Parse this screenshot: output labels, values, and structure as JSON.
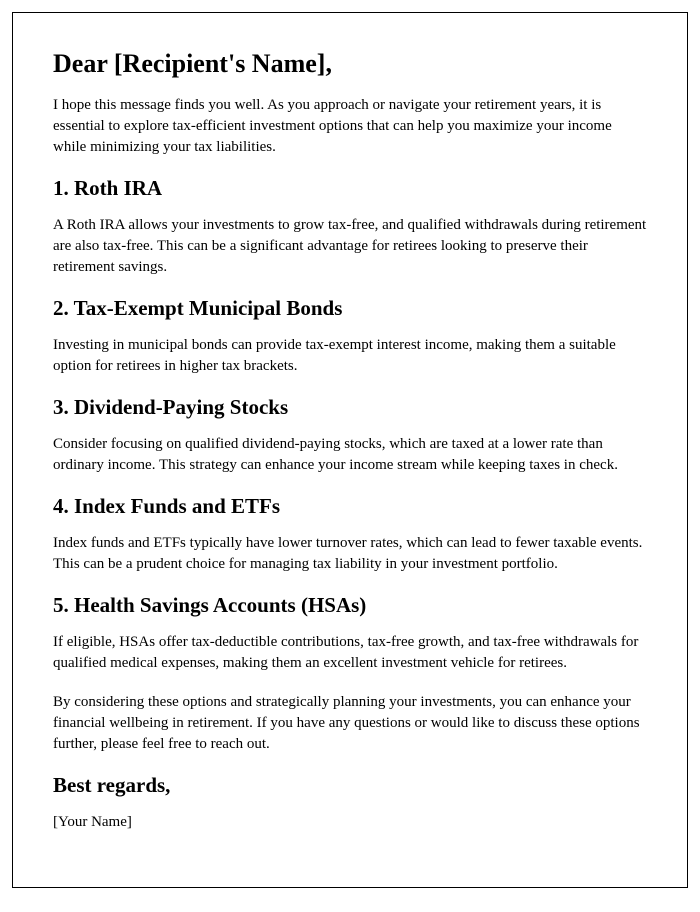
{
  "greeting": "Dear [Recipient's Name],",
  "intro": "I hope this message finds you well. As you approach or navigate your retirement years, it is essential to explore tax-efficient investment options that can help you maximize your income while minimizing your tax liabilities.",
  "sections": [
    {
      "heading": "1. Roth IRA",
      "body": "A Roth IRA allows your investments to grow tax-free, and qualified withdrawals during retirement are also tax-free. This can be a significant advantage for retirees looking to preserve their retirement savings."
    },
    {
      "heading": "2. Tax-Exempt Municipal Bonds",
      "body": "Investing in municipal bonds can provide tax-exempt interest income, making them a suitable option for retirees in higher tax brackets."
    },
    {
      "heading": "3. Dividend-Paying Stocks",
      "body": "Consider focusing on qualified dividend-paying stocks, which are taxed at a lower rate than ordinary income. This strategy can enhance your income stream while keeping taxes in check."
    },
    {
      "heading": "4. Index Funds and ETFs",
      "body": "Index funds and ETFs typically have lower turnover rates, which can lead to fewer taxable events. This can be a prudent choice for managing tax liability in your investment portfolio."
    },
    {
      "heading": "5. Health Savings Accounts (HSAs)",
      "body": "If eligible, HSAs offer tax-deductible contributions, tax-free growth, and tax-free withdrawals for qualified medical expenses, making them an excellent investment vehicle for retirees."
    }
  ],
  "conclusion": "By considering these options and strategically planning your investments, you can enhance your financial wellbeing in retirement. If you have any questions or would like to discuss these options further, please feel free to reach out.",
  "closing": "Best regards,",
  "signature": "[Your Name]",
  "styles": {
    "page_border_color": "#000000",
    "background_color": "#ffffff",
    "text_color": "#000000",
    "font_family": "Times New Roman",
    "greeting_fontsize": 26,
    "heading_fontsize": 21,
    "body_fontsize": 15,
    "closing_fontsize": 21,
    "signature_fontsize": 15
  }
}
